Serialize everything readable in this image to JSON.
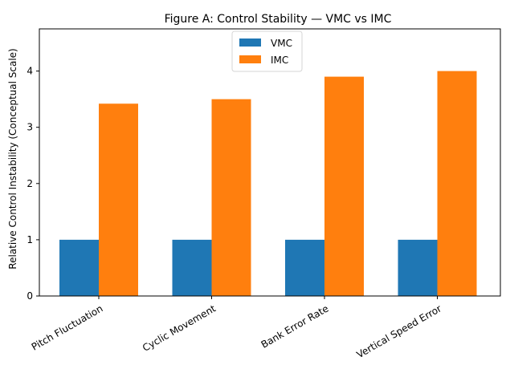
{
  "chart_data": {
    "type": "bar",
    "title": "Figure A: Control Stability — VMC vs IMC",
    "xlabel": "",
    "ylabel": "Relative Control Instability (Conceptual Scale)",
    "categories": [
      "Pitch Fluctuation",
      "Cyclic Movement",
      "Bank Error Rate",
      "Vertical Speed Error"
    ],
    "series": [
      {
        "name": "VMC",
        "values": [
          1.0,
          1.0,
          1.0,
          1.0
        ],
        "color": "#1f77b4"
      },
      {
        "name": "IMC",
        "values": [
          3.42,
          3.5,
          3.9,
          4.0
        ],
        "color": "#ff7f0e"
      }
    ],
    "ylim": [
      0,
      4.75
    ],
    "yticks": [
      0,
      1,
      2,
      3,
      4
    ],
    "legend_position": "top-center",
    "grid": false
  }
}
